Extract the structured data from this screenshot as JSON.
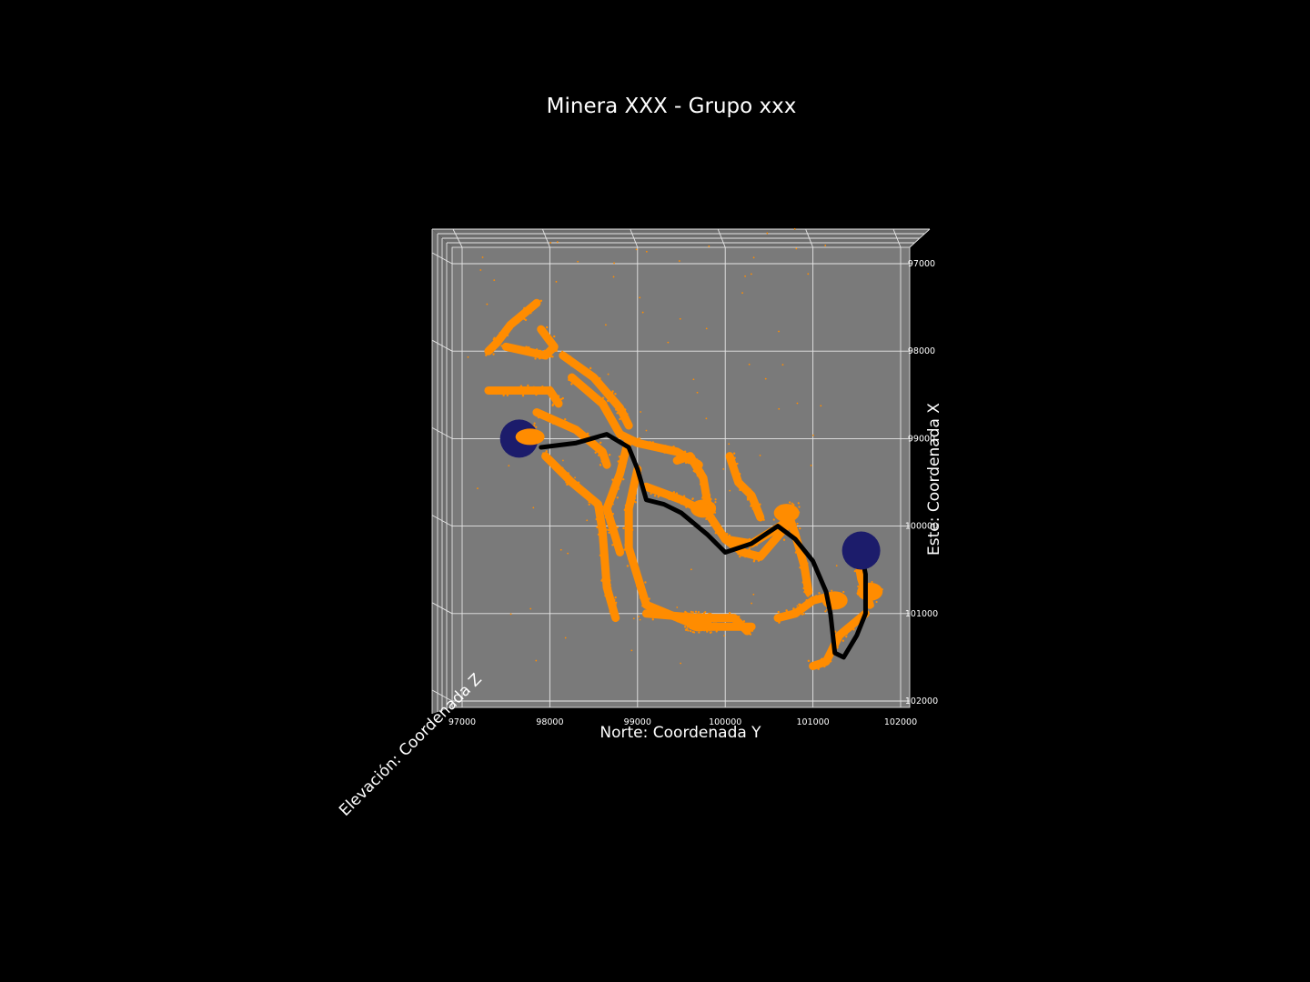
{
  "chart_data": {
    "type": "scatter",
    "title": "Minera XXX - Grupo xxx",
    "xlabel": "Norte:  Coordenada Y",
    "ylabel": "Este:  Coordenada X",
    "zlabel": "Elevación: Coordenada Z",
    "xticks": [
      97000,
      98000,
      99000,
      100000,
      101000,
      102000
    ],
    "yticks": [
      97000,
      98000,
      99000,
      100000,
      101000,
      102000
    ],
    "xtick_labels": [
      "97000",
      "98000",
      "99000",
      "100000",
      "101000",
      "102000"
    ],
    "ytick_labels": [
      "97000",
      "98000",
      "99000",
      "100000",
      "101000",
      "102000"
    ],
    "xlim": [
      96650,
      102100
    ],
    "ylim": [
      96950,
      102050
    ],
    "grid": true,
    "colors": {
      "figure_background": "#000000",
      "pane": "#7a7a7a",
      "grid": "#e6e6e6",
      "points": "#ff8c00",
      "path": "#000000",
      "endpoint_markers": "#1c1c6b"
    },
    "series": [
      {
        "marker": "point",
        "color": "#ff8c00",
        "polylines": [
          [
            [
              97850,
              97450
            ],
            [
              97550,
              97700
            ],
            [
              97400,
              97900
            ],
            [
              97300,
              98000
            ]
          ],
          [
            [
              97900,
              97750
            ],
            [
              98050,
              97950
            ],
            [
              97950,
              98050
            ],
            [
              97500,
              97950
            ]
          ],
          [
            [
              97300,
              98450
            ],
            [
              97700,
              98450
            ],
            [
              98000,
              98450
            ],
            [
              98100,
              98600
            ]
          ],
          [
            [
              98250,
              98300
            ],
            [
              98600,
              98600
            ],
            [
              98800,
              98950
            ],
            [
              99000,
              99050
            ],
            [
              99450,
              99150
            ],
            [
              99700,
              99300
            ]
          ],
          [
            [
              98150,
              98050
            ],
            [
              98500,
              98300
            ],
            [
              98800,
              98650
            ],
            [
              98900,
              98850
            ]
          ],
          [
            [
              97850,
              98700
            ],
            [
              98300,
              98900
            ],
            [
              98600,
              99150
            ],
            [
              98650,
              99300
            ]
          ],
          [
            [
              97950,
              99200
            ],
            [
              98250,
              99500
            ],
            [
              98550,
              99750
            ],
            [
              98600,
              100050
            ],
            [
              98650,
              100700
            ],
            [
              98750,
              101050
            ]
          ],
          [
            [
              98900,
              99000
            ],
            [
              98800,
              99400
            ],
            [
              98650,
              99800
            ],
            [
              98800,
              100300
            ]
          ],
          [
            [
              99000,
              99350
            ],
            [
              98900,
              99800
            ],
            [
              98900,
              100250
            ],
            [
              99100,
              100900
            ],
            [
              99700,
              101150
            ],
            [
              100300,
              101150
            ]
          ],
          [
            [
              99100,
              101000
            ],
            [
              99700,
              101050
            ],
            [
              100100,
              101050
            ],
            [
              100250,
              101200
            ]
          ],
          [
            [
              99100,
              99550
            ],
            [
              99500,
              99700
            ],
            [
              99800,
              99850
            ],
            [
              100000,
              100150
            ],
            [
              100200,
              100300
            ],
            [
              100400,
              100350
            ],
            [
              100700,
              100000
            ]
          ],
          [
            [
              99450,
              99250
            ],
            [
              99600,
              99200
            ],
            [
              99750,
              99450
            ],
            [
              99800,
              99750
            ]
          ],
          [
            [
              100050,
              99200
            ],
            [
              100150,
              99500
            ],
            [
              100300,
              99650
            ],
            [
              100400,
              99900
            ]
          ],
          [
            [
              100700,
              99800
            ],
            [
              100800,
              100100
            ],
            [
              100900,
              100450
            ],
            [
              100950,
              100750
            ]
          ],
          [
            [
              100000,
              100150
            ],
            [
              100300,
              100200
            ],
            [
              100550,
              100050
            ],
            [
              100700,
              99950
            ]
          ],
          [
            [
              101500,
              100300
            ],
            [
              101550,
              100600
            ],
            [
              101650,
              100900
            ]
          ],
          [
            [
              101600,
              101000
            ],
            [
              101300,
              101250
            ],
            [
              101150,
              101550
            ],
            [
              101000,
              101600
            ]
          ],
          [
            [
              100600,
              101050
            ],
            [
              100800,
              101000
            ],
            [
              101000,
              100850
            ],
            [
              101200,
              100800
            ]
          ]
        ],
        "clusters": [
          {
            "x": 97700,
            "y": 98950,
            "count": 160
          },
          {
            "x": 99750,
            "y": 99800,
            "count": 140
          },
          {
            "x": 100700,
            "y": 99850,
            "count": 90
          },
          {
            "x": 101250,
            "y": 100850,
            "count": 60
          },
          {
            "x": 101650,
            "y": 100750,
            "count": 80
          },
          {
            "x": 99700,
            "y": 101100,
            "count": 200
          }
        ],
        "scatter_bounds": {
          "x": [
            96950,
            101300
          ],
          "y": [
            96600,
            101700
          ]
        }
      },
      {
        "marker": "path",
        "color": "#000000",
        "points": [
          [
            97900,
            99100
          ],
          [
            98300,
            99050
          ],
          [
            98650,
            98950
          ],
          [
            98900,
            99100
          ],
          [
            99000,
            99350
          ],
          [
            99100,
            99700
          ],
          [
            99300,
            99750
          ],
          [
            99500,
            99850
          ],
          [
            99800,
            100100
          ],
          [
            100000,
            100300
          ],
          [
            100300,
            100200
          ],
          [
            100600,
            100000
          ],
          [
            100800,
            100150
          ],
          [
            101000,
            100400
          ],
          [
            101150,
            100750
          ],
          [
            101200,
            101000
          ],
          [
            101250,
            101450
          ],
          [
            101350,
            101500
          ],
          [
            101500,
            101250
          ],
          [
            101600,
            101000
          ],
          [
            101600,
            100550
          ],
          [
            101550,
            100300
          ]
        ]
      },
      {
        "marker": "circle",
        "color": "#1c1c6b",
        "points": [
          [
            97650,
            99000
          ],
          [
            101550,
            100280
          ]
        ]
      }
    ]
  }
}
